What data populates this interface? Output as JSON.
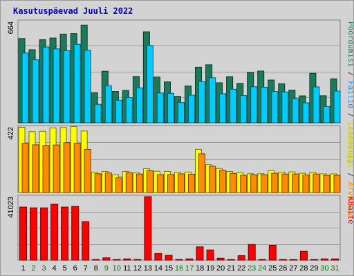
{
  "title": "Kasutuspäevad Juuli 2022",
  "right_labels": {
    "panel1": [
      {
        "text": "Pöördumisi",
        "color": "#1a7a5a"
      },
      {
        "text": " / ",
        "color": "#333333"
      },
      {
        "text": "Failid",
        "color": "#1e90ff"
      },
      {
        "text": " / ",
        "color": "#333333"
      },
      {
        "text": "Lehekülgi",
        "color": "#cccc00"
      }
    ],
    "panel2": [
      {
        "text": "Lehekülgi",
        "color": "#cccc00"
      },
      {
        "text": " / ",
        "color": "#333333"
      },
      {
        "text": "Arvuteid",
        "color": "#ff8c00"
      }
    ],
    "panel3": [
      {
        "text": "KBaite",
        "color": "#ff0000"
      }
    ]
  },
  "colors": {
    "hits": "#1a7a5a",
    "files": "#00ccff",
    "pages": "#ffff00",
    "sites": "#ff8c00",
    "kbytes": "#ff0000",
    "panel_bg": "#d3d3d3",
    "weekend_tick": "#008000",
    "weekday_tick": "#000000"
  },
  "chart_data": {
    "type": "bar",
    "title": "Kasutuspäevad Juuli 2022",
    "categories": [
      "1",
      "2",
      "3",
      "4",
      "5",
      "6",
      "7",
      "8",
      "9",
      "10",
      "11",
      "12",
      "13",
      "14",
      "15",
      "16",
      "17",
      "18",
      "19",
      "20",
      "21",
      "22",
      "23",
      "24",
      "25",
      "26",
      "27",
      "28",
      "29",
      "30",
      "31"
    ],
    "weekend_days": [
      2,
      3,
      9,
      10,
      16,
      17,
      23,
      24,
      30,
      31
    ],
    "panels": [
      {
        "name": "Pöördumisi / Failid",
        "ymax_label": "664",
        "ylim": [
          0,
          664
        ],
        "series": [
          {
            "name": "Pöördumisi",
            "values": [
              552,
              479,
              544,
              555,
              581,
              584,
              640,
              197,
              338,
              205,
              212,
              303,
              596,
              300,
              268,
              173,
              241,
              364,
              380,
              262,
              302,
              258,
              330,
              339,
              280,
              256,
              214,
              176,
              324,
              177,
              288
            ]
          },
          {
            "name": "Failid",
            "values": [
              457,
              413,
              496,
              484,
              472,
              514,
              475,
              121,
              242,
              148,
              165,
              229,
              507,
              195,
              193,
              133,
              181,
              270,
              295,
              190,
              220,
              178,
              236,
              233,
              205,
              202,
              159,
              131,
              235,
              107,
              208
            ]
          }
        ]
      },
      {
        "name": "Lehekülgi / Arvuteid",
        "ymax_label": "422",
        "ylim": [
          0,
          422
        ],
        "series": [
          {
            "name": "Lehekülgi",
            "values": [
              420,
              392,
              394,
              416,
              418,
              424,
              396,
              131,
              136,
              114,
              136,
              126,
              153,
              137,
              136,
              130,
              132,
              278,
              179,
              154,
              135,
              128,
              121,
              121,
              142,
              131,
              133,
              124,
              131,
              120,
              120
            ]
          },
          {
            "name": "Arvuteid",
            "values": [
              317,
              307,
              303,
              306,
              321,
              317,
              278,
              121,
              126,
              94,
              128,
              119,
              141,
              115,
              116,
              120,
              118,
              249,
              169,
              144,
              123,
              112,
              114,
              114,
              124,
              119,
              119,
              113,
              119,
              111,
              111
            ]
          }
        ]
      },
      {
        "name": "KBaite",
        "ymax_label": "41023",
        "ylim": [
          0,
          41023
        ],
        "series": [
          {
            "name": "KBaite",
            "values": [
              34300,
              33800,
              33800,
              36100,
              34300,
              34700,
              24900,
              410,
              1500,
              410,
              820,
              410,
              41023,
              4300,
              3100,
              410,
              820,
              8600,
              6600,
              1200,
              410,
              2900,
              10100,
              410,
              9600,
              410,
              410,
              5700,
              410,
              820,
              820
            ]
          }
        ]
      }
    ]
  }
}
